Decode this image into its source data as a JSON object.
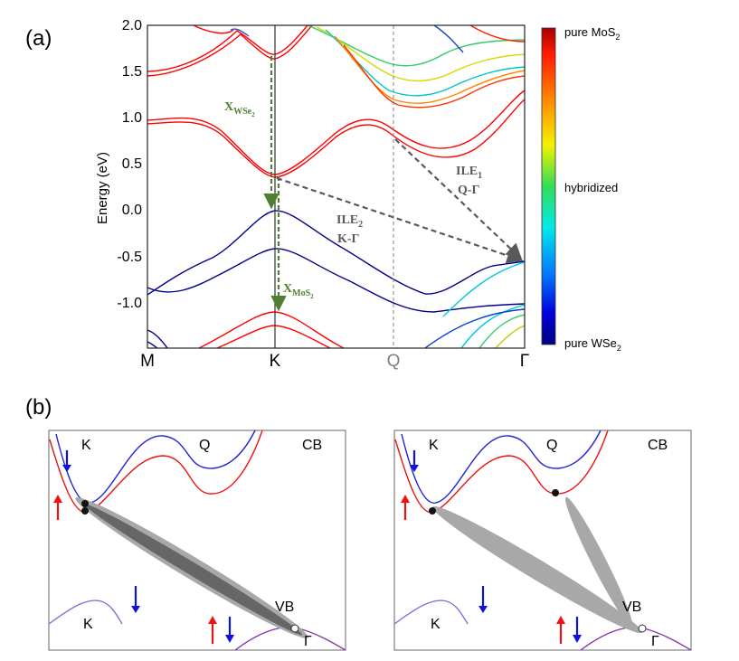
{
  "panel_a": {
    "label": "(a)",
    "ylabel": "Energy (eV)",
    "y_ticks": [
      "2.0",
      "1.5",
      "1.0",
      "0.5",
      "0.0",
      "-0.5",
      "-1.0"
    ],
    "k_labels": [
      "M",
      "K",
      "Q",
      "Γ"
    ],
    "annotations": {
      "x_wse2": {
        "main": "X",
        "sub": "WSe",
        "subsub": "2"
      },
      "x_mos2": {
        "main": "X",
        "sub": "MoS",
        "subsub": "2"
      },
      "ile2": {
        "main": "ILE",
        "sub": "2",
        "path": "K-Γ"
      },
      "ile1": {
        "main": "ILE",
        "sub": "1",
        "path": "Q-Γ"
      }
    },
    "colorbar": {
      "top_label": "pure MoS",
      "top_sub": "2",
      "mid_label": "hybridized",
      "bottom_label": "pure WSe",
      "bottom_sub": "2"
    },
    "colors": {
      "mos2": "#ff0000",
      "wse2": "#00008b",
      "arrow_green": "#4f7f2f",
      "arrow_grey": "#595959"
    }
  },
  "panel_b": {
    "label": "(b)",
    "left": {
      "K_top": "K",
      "Q": "Q",
      "CB": "CB",
      "K_bottom": "K",
      "VB": "VB",
      "Gamma": "Γ"
    },
    "right": {
      "K_top": "K",
      "Q": "Q",
      "CB": "CB",
      "K_bottom": "K",
      "VB": "VB",
      "Gamma": "Γ"
    }
  }
}
